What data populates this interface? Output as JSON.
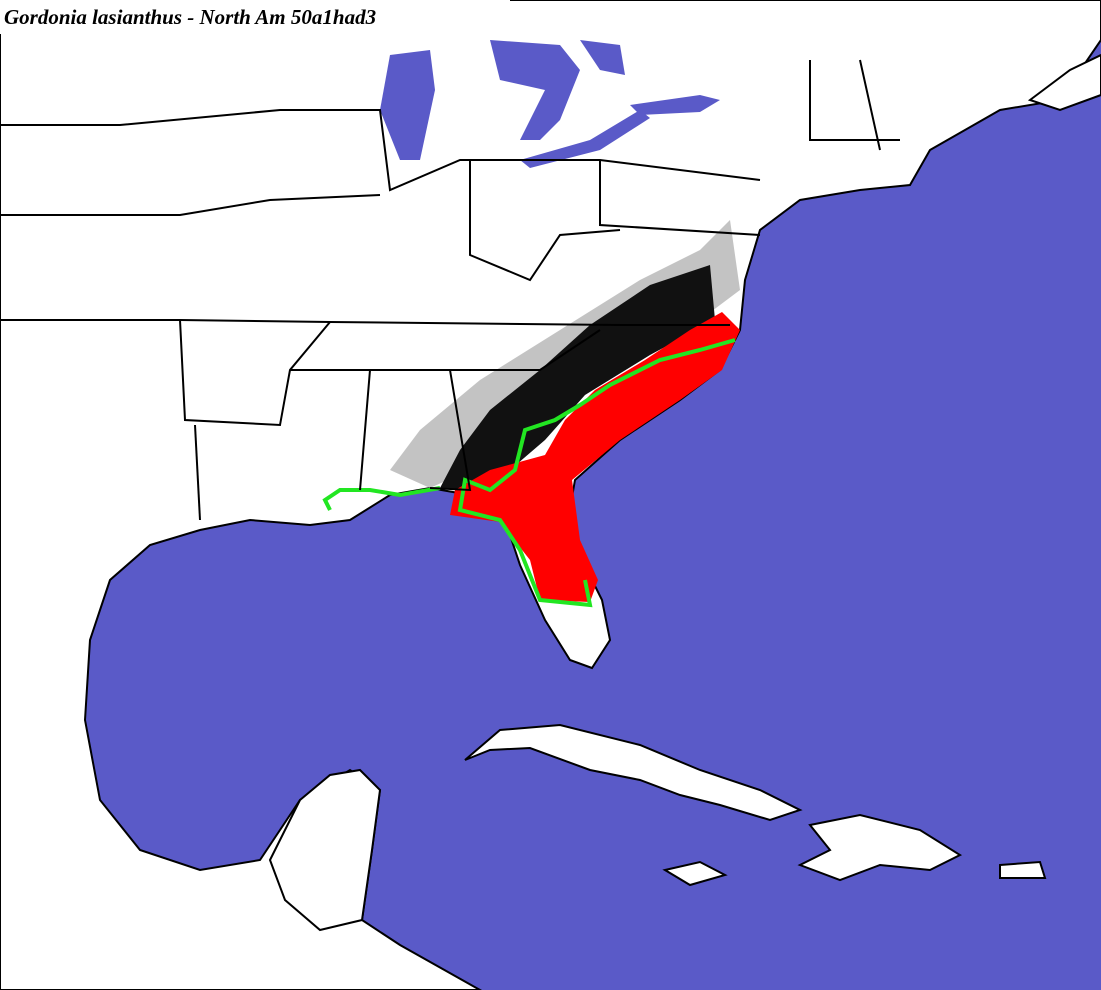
{
  "title": "Gordonia lasianthus - North Am 50a1had3"
}
